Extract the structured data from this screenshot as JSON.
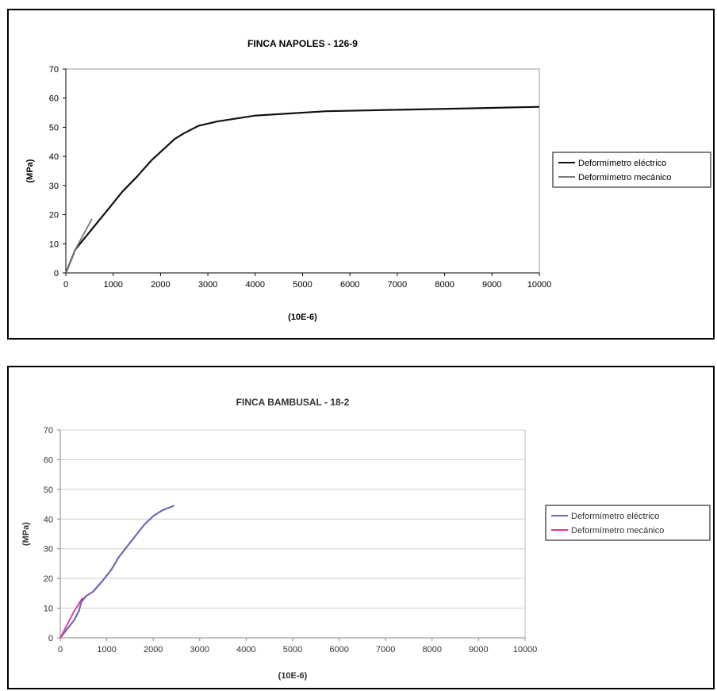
{
  "chart_data": [
    {
      "type": "line",
      "title": "FINCA NAPOLES - 126-9",
      "xlabel": "(10E-6)",
      "ylabel": "(MPa)",
      "xlim": [
        0,
        10000
      ],
      "ylim": [
        0,
        70
      ],
      "x_ticks": [
        "0",
        "1000",
        "2000",
        "3000",
        "4000",
        "5000",
        "6000",
        "7000",
        "8000",
        "9000",
        "10000"
      ],
      "y_ticks": [
        "0",
        "10",
        "20",
        "30",
        "40",
        "50",
        "60",
        "70"
      ],
      "grid": false,
      "legend_position": "right",
      "series": [
        {
          "name": "Deformímetro eléctrico",
          "color": "#111111",
          "points": [
            [
              0,
              0
            ],
            [
              100,
              4
            ],
            [
              200,
              8
            ],
            [
              350,
              11
            ],
            [
              550,
              15
            ],
            [
              800,
              20
            ],
            [
              1000,
              24
            ],
            [
              1200,
              28
            ],
            [
              1500,
              33
            ],
            [
              1800,
              38.5
            ],
            [
              2100,
              43
            ],
            [
              2300,
              46
            ],
            [
              2500,
              48
            ],
            [
              2800,
              50.5
            ],
            [
              3200,
              52
            ],
            [
              4000,
              54
            ],
            [
              5500,
              55.5
            ],
            [
              7000,
              56
            ],
            [
              8500,
              56.5
            ],
            [
              10000,
              57
            ]
          ]
        },
        {
          "name": "Deformímetro mecánico",
          "color": "#777777",
          "points": [
            [
              0,
              0
            ],
            [
              100,
              4
            ],
            [
              200,
              8
            ],
            [
              300,
              11
            ],
            [
              400,
              14
            ],
            [
              550,
              18.5
            ]
          ]
        }
      ]
    },
    {
      "type": "line",
      "title": "FINCA BAMBUSAL - 18-2",
      "xlabel": "(10E-6)",
      "ylabel": "(MPa)",
      "xlim": [
        0,
        10000
      ],
      "ylim": [
        0,
        70
      ],
      "x_ticks": [
        "0",
        "1000",
        "2000",
        "3000",
        "4000",
        "5000",
        "6000",
        "7000",
        "8000",
        "9000",
        "10000"
      ],
      "y_ticks": [
        "0",
        "10",
        "20",
        "30",
        "40",
        "50",
        "60",
        "70"
      ],
      "grid": true,
      "legend_position": "right",
      "series": [
        {
          "name": "Deformímetro eléctrico",
          "color": "#6a6ab8",
          "points": [
            [
              0,
              0
            ],
            [
              150,
              3
            ],
            [
              300,
              6
            ],
            [
              400,
              9
            ],
            [
              450,
              12
            ],
            [
              550,
              14
            ],
            [
              700,
              15.5
            ],
            [
              900,
              19
            ],
            [
              1100,
              23
            ],
            [
              1250,
              27
            ],
            [
              1400,
              30
            ],
            [
              1500,
              32
            ],
            [
              1650,
              35
            ],
            [
              1800,
              38
            ],
            [
              2000,
              41
            ],
            [
              2200,
              43
            ],
            [
              2450,
              44.5
            ]
          ]
        },
        {
          "name": "Deformímetro mecánico",
          "color": "#e0339a",
          "points": [
            [
              0,
              0
            ],
            [
              100,
              3
            ],
            [
              200,
              6
            ],
            [
              300,
              9
            ],
            [
              400,
              11.5
            ],
            [
              480,
              13.5
            ]
          ]
        }
      ]
    }
  ]
}
